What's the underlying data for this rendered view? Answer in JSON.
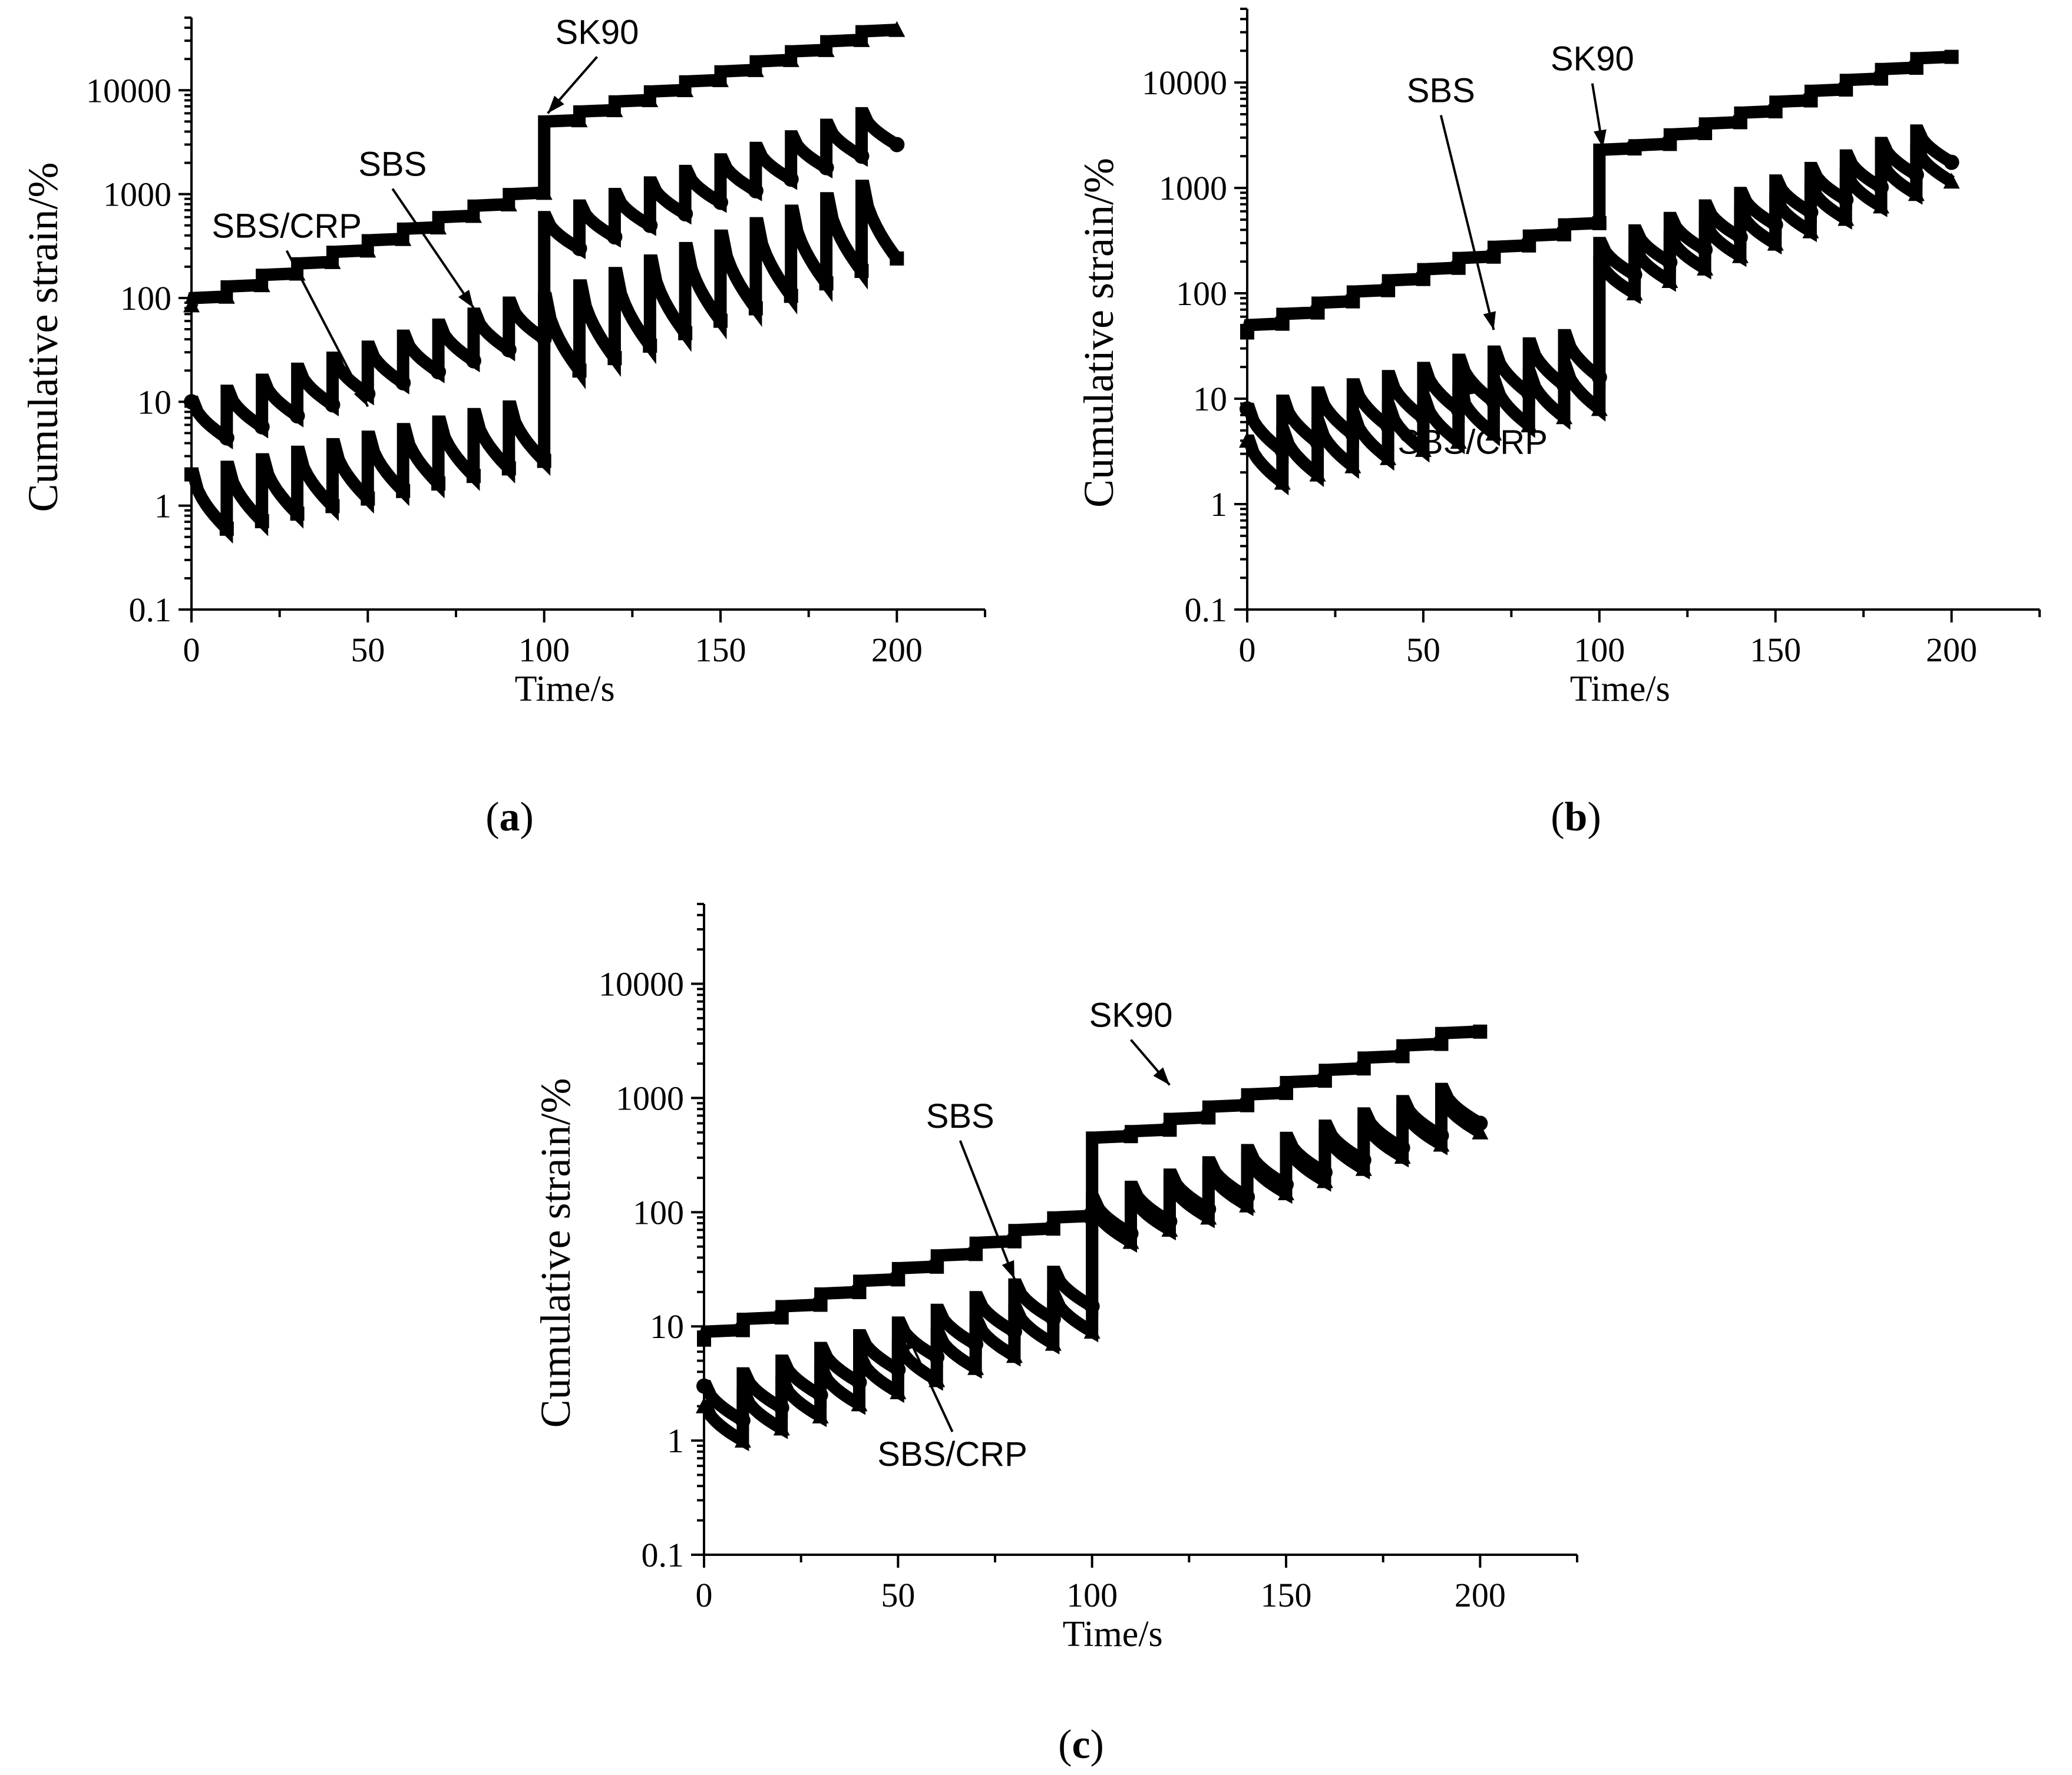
{
  "chart_data": [
    {
      "id": "a",
      "type": "line",
      "panel_label": "a",
      "xlabel": "Time/s",
      "ylabel": "Cumulative strain/%",
      "xlim": [
        0,
        225
      ],
      "ylim": [
        0.1,
        50000
      ],
      "y_scale": "log",
      "x_ticks": [
        0,
        50,
        100,
        150,
        200
      ],
      "x_tick_labels": [
        "0",
        "50",
        "100",
        "150",
        "200"
      ],
      "y_ticks": [
        0.1,
        1,
        10,
        100,
        1000,
        10000
      ],
      "y_tick_labels": [
        "0.1",
        "1",
        "10",
        "100",
        "1000",
        "10000"
      ],
      "series": [
        {
          "name": "SK90",
          "marker": "triangle",
          "creep": "step",
          "start_low": 100,
          "start_high": 5000,
          "end_low": 1000,
          "end_high": 37000,
          "jump_to": 5000
        },
        {
          "name": "SBS",
          "marker": "circle",
          "creep": "sawtooth",
          "start_low": 10,
          "start_high": 600,
          "end_low": 90,
          "end_high": 6000,
          "recover_low": 0.45,
          "recover_high": 0.5
        },
        {
          "name": "SBS/CRP",
          "marker": "square",
          "creep": "sawtooth",
          "start_low": 2,
          "start_high": 100,
          "end_low": 9,
          "end_high": 1200,
          "recover_low": 0.3,
          "recover_high": 0.2
        }
      ],
      "annotations": [
        {
          "text": "SK90",
          "target": [
            101,
            6000
          ],
          "anchor": [
            115,
            28000
          ]
        },
        {
          "text": "SBS",
          "target": [
            80,
            80
          ],
          "anchor": [
            57,
            1500
          ]
        },
        {
          "text": "SBS/CRP",
          "target": [
            50,
            9
          ],
          "anchor": [
            27,
            380
          ]
        }
      ]
    },
    {
      "id": "b",
      "type": "line",
      "panel_label": "b",
      "xlabel": "Time/s",
      "ylabel": "Cumulative strain/%",
      "xlim": [
        0,
        225
      ],
      "ylim": [
        0.1,
        50000
      ],
      "y_scale": "log",
      "x_ticks": [
        0,
        50,
        100,
        150,
        200
      ],
      "x_tick_labels": [
        "0",
        "50",
        "100",
        "150",
        "200"
      ],
      "y_ticks": [
        0.1,
        1,
        10,
        100,
        1000,
        10000
      ],
      "y_tick_labels": [
        "0.1",
        "1",
        "10",
        "100",
        "1000",
        "10000"
      ],
      "series": [
        {
          "name": "SK90",
          "marker": "square",
          "creep": "step",
          "start_low": 50,
          "start_high": 2000,
          "end_low": 450,
          "end_high": 17000,
          "jump_to": 2300
        },
        {
          "name": "SBS",
          "marker": "circle",
          "creep": "sawtooth",
          "start_low": 8,
          "start_high": 300,
          "end_low": 40,
          "end_high": 3500,
          "recover_low": 0.4,
          "recover_high": 0.5
        },
        {
          "name": "SBS/CRP",
          "marker": "triangle",
          "creep": "sawtooth",
          "start_low": 4,
          "start_high": 200,
          "end_low": 20,
          "end_high": 2300,
          "recover_low": 0.4,
          "recover_high": 0.5
        }
      ],
      "annotations": [
        {
          "text": "SK90",
          "target": [
            101,
            2400
          ],
          "anchor": [
            98,
            13000
          ]
        },
        {
          "text": "SBS",
          "target": [
            70,
            45
          ],
          "anchor": [
            55,
            6500
          ]
        },
        {
          "text": "SBS/CRP",
          "target": [
            62,
            16
          ],
          "anchor": [
            64,
            3
          ]
        }
      ]
    },
    {
      "id": "c",
      "type": "line",
      "panel_label": "c",
      "xlabel": "Time/s",
      "ylabel": "Cumulative strain/%",
      "xlim": [
        0,
        225
      ],
      "ylim": [
        0.1,
        50000
      ],
      "y_scale": "log",
      "x_ticks": [
        0,
        50,
        100,
        150,
        200
      ],
      "x_tick_labels": [
        "0",
        "50",
        "100",
        "150",
        "200"
      ],
      "y_ticks": [
        0.1,
        1,
        10,
        100,
        1000,
        10000
      ],
      "y_tick_labels": [
        "0.1",
        "1",
        "10",
        "100",
        "1000",
        "10000"
      ],
      "series": [
        {
          "name": "SK90",
          "marker": "square",
          "creep": "step",
          "start_low": 9,
          "start_high": 400,
          "end_low": 90,
          "end_high": 3700,
          "jump_to": 450
        },
        {
          "name": "SBS",
          "marker": "circle",
          "creep": "sawtooth",
          "start_low": 3,
          "start_high": 130,
          "end_low": 30,
          "end_high": 1200,
          "recover_low": 0.5,
          "recover_high": 0.5
        },
        {
          "name": "SBS/CRP",
          "marker": "triangle",
          "creep": "sawtooth",
          "start_low": 2,
          "start_high": 110,
          "end_low": 18,
          "end_high": 1000,
          "recover_low": 0.5,
          "recover_high": 0.5
        }
      ],
      "annotations": [
        {
          "text": "SK90",
          "target": [
            120,
            1300
          ],
          "anchor": [
            110,
            4200
          ]
        },
        {
          "text": "SBS",
          "target": [
            80,
            26
          ],
          "anchor": [
            66,
            550
          ]
        },
        {
          "text": "SBS/CRP",
          "target": [
            52,
            9
          ],
          "anchor": [
            64,
            0.6
          ]
        }
      ]
    }
  ]
}
